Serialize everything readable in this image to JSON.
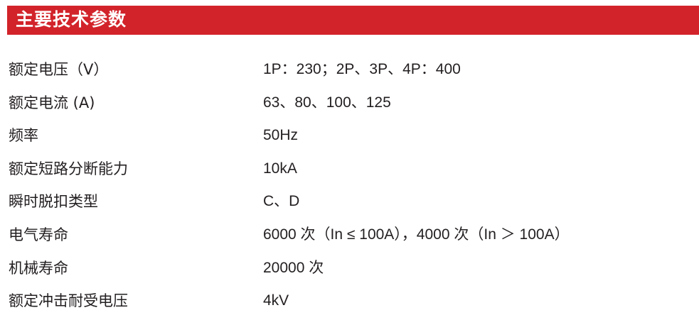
{
  "header": {
    "title": "主要技术参数",
    "color": "#d2232a"
  },
  "rows": [
    {
      "label": "额定电压（V）",
      "value": "1P：230；2P、3P、4P：400"
    },
    {
      "label": "额定电流 (A)",
      "value": "63、80、100、125"
    },
    {
      "label": "频率",
      "value": "50Hz"
    },
    {
      "label": "额定短路分断能力",
      "value": "10kA"
    },
    {
      "label": "瞬时脱扣类型",
      "value": "C、D"
    },
    {
      "label": "电气寿命",
      "value": "6000 次（In ≤ 100A），4000 次（In ＞ 100A）"
    },
    {
      "label": "机械寿命",
      "value": "20000 次"
    },
    {
      "label": "额定冲击耐受电压",
      "value": "4kV"
    }
  ]
}
